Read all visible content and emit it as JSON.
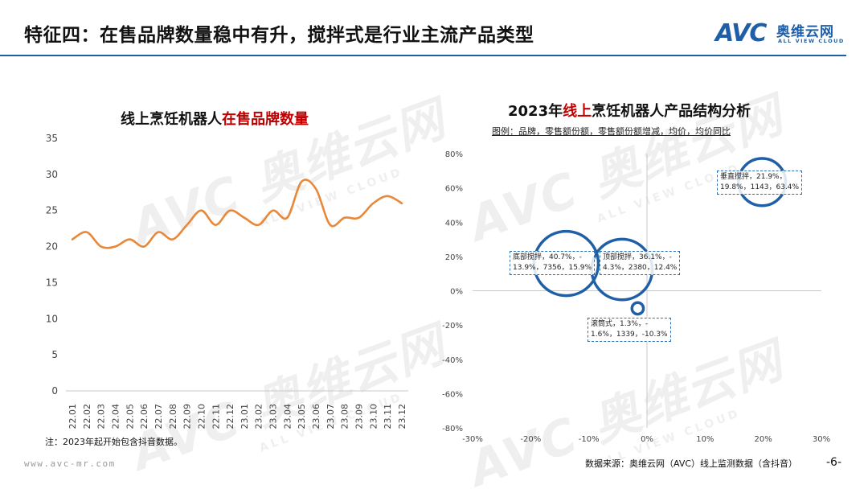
{
  "header": {
    "title": "特征四：在售品牌数量稳中有升，搅拌式是行业主流产品类型",
    "logo_avc": "AVC",
    "logo_cn": "奥维云网",
    "logo_en": "ALL VIEW CLOUD"
  },
  "watermark": {
    "main": "AVC 奥维云网",
    "sub": "ALL VIEW CLOUD"
  },
  "colors": {
    "accent": "#1f5fa8",
    "highlight": "#c00000",
    "line_series": "#e8883a",
    "bubble": "#1f5fa8"
  },
  "left_chart": {
    "title_prefix": "线上烹饪机器人",
    "title_highlight": "在售品牌数量"
  },
  "right_chart": {
    "title_prefix": "2023年",
    "title_highlight": "线上",
    "title_suffix": "烹饪机器人产品结构分析",
    "legend_text": "图例：品牌，零售额份额，零售额份额增减，均价，均价同比"
  },
  "chart_data": [
    {
      "type": "line",
      "title": "线上烹饪机器人在售品牌数量",
      "categories": [
        "22.01",
        "22.02",
        "22.03",
        "22.04",
        "22.05",
        "22.06",
        "22.07",
        "22.08",
        "22.09",
        "22.10",
        "22.11",
        "22.12",
        "23.01",
        "23.02",
        "23.03",
        "23.04",
        "23.05",
        "23.06",
        "23.07",
        "23.08",
        "23.09",
        "23.10",
        "23.11",
        "23.12"
      ],
      "values": [
        21,
        22,
        20,
        20,
        21,
        20,
        22,
        21,
        23,
        25,
        23,
        25,
        24,
        23,
        25,
        24,
        29,
        28,
        23,
        24,
        24,
        26,
        27,
        26
      ],
      "ylim": [
        0,
        35
      ],
      "yticks": [
        0,
        5,
        10,
        15,
        20,
        25,
        30,
        35
      ],
      "grid": false,
      "legend": "none"
    },
    {
      "type": "scatter",
      "title": "2023年线上烹饪机器人产品结构分析",
      "xlim": [
        -30,
        30
      ],
      "ylim": [
        -80,
        80
      ],
      "xticks": [
        "-30%",
        "-20%",
        "-10%",
        "0%",
        "10%",
        "20%",
        "30%"
      ],
      "yticks": [
        "80%",
        "60%",
        "40%",
        "20%",
        "0%",
        "-20%",
        "-40%",
        "-60%",
        "-80%"
      ],
      "points": [
        {
          "name": "底部搅拌",
          "share": 40.7,
          "x": -13.9,
          "price": 7356,
          "y": 15.9,
          "label_line1": "底部搅拌，40.7%，-",
          "label_line2": "13.9%，7356，15.9%"
        },
        {
          "name": "顶部搅拌",
          "share": 36.1,
          "x": -4.3,
          "price": 2380,
          "y": 12.4,
          "label_line1": "顶部搅拌，36.1%，-",
          "label_line2": "4.3%，2380，12.4%"
        },
        {
          "name": "垂直搅拌",
          "share": 21.9,
          "x": 19.8,
          "price": 1143,
          "y": 63.4,
          "label_line1": "垂直搅拌，21.9%，",
          "label_line2": "19.8%，1143，63.4%"
        },
        {
          "name": "滚筒式",
          "share": 1.3,
          "x": -1.6,
          "price": 1339,
          "y": -10.3,
          "label_line1": "滚筒式，1.3%，-",
          "label_line2": "1.6%，1339，-10.3%"
        }
      ]
    }
  ],
  "footer": {
    "note": "注：2023年起开始包含抖音数据。",
    "website": "www.avc-mr.com",
    "source": "数据来源：奥维云网（AVC）线上监测数据（含抖音）",
    "page": "-6-"
  }
}
